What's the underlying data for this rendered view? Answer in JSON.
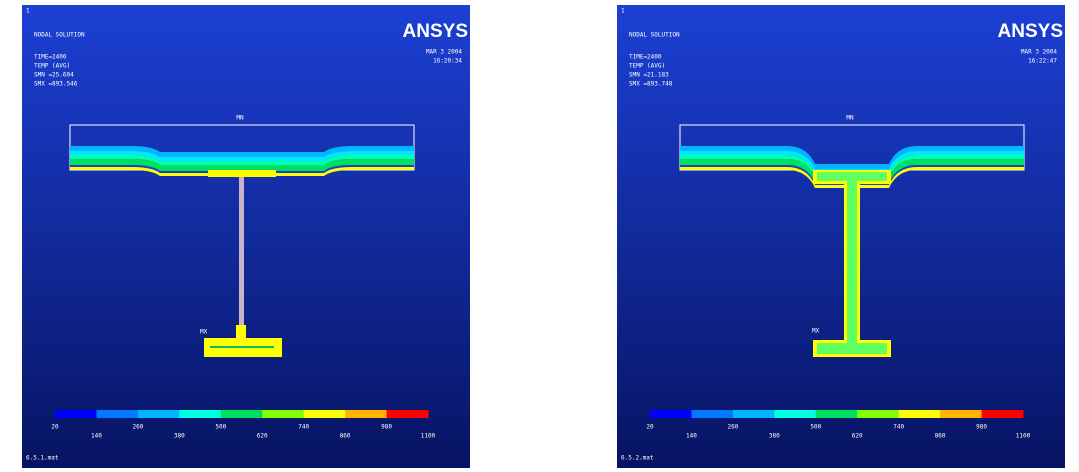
{
  "panels": [
    {
      "window": "1",
      "title": "NODAL SOLUTION",
      "time": "TIME=2400",
      "temp": "TEMP     (AVG)",
      "smn": "SMN =25.604",
      "smx": "SMX =893.546",
      "logo": "ANSYS",
      "date": "MAR  3 2004",
      "clock": "16:20:34",
      "mn": "MN",
      "mx": "MX",
      "footer": "6.5.1.mat",
      "colorbar": {
        "labels": [
          "20",
          "140",
          "260",
          "380",
          "500",
          "620",
          "740",
          "860",
          "980",
          "1100"
        ],
        "colors": [
          "#0000ff",
          "#0078ff",
          "#00b4ff",
          "#00ffe0",
          "#00e060",
          "#80ff00",
          "#ffff00",
          "#ffb400",
          "#ff0000"
        ]
      }
    },
    {
      "window": "1",
      "title": "NODAL SOLUTION",
      "time": "TIME=2400",
      "temp": "TEMP     (AVG)",
      "smn": "SMN =21.183",
      "smx": "SMX =893.748",
      "logo": "ANSYS",
      "date": "MAR  3 2004",
      "clock": "16:22:47",
      "mn": "MN",
      "mx": "MX",
      "footer": "6.5.2.mat",
      "colorbar": {
        "labels": [
          "20",
          "140",
          "260",
          "380",
          "500",
          "620",
          "740",
          "860",
          "980",
          "1100"
        ],
        "colors": [
          "#0000ff",
          "#0078ff",
          "#00b4ff",
          "#00ffe0",
          "#00e060",
          "#80ff00",
          "#ffff00",
          "#ffb400",
          "#ff0000"
        ]
      }
    }
  ]
}
